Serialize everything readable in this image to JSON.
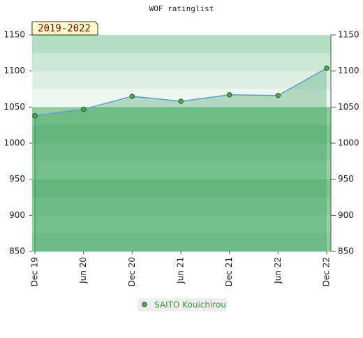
{
  "chart_data": {
    "type": "line",
    "title": "WOF ratinglist",
    "annotation": "2019-2022",
    "categories": [
      "Dec 19",
      "Jun 20",
      "Dec 20",
      "Jun 21",
      "Dec 21",
      "Jun 22",
      "Dec 22"
    ],
    "series": [
      {
        "name": "SAITO Kouichirou",
        "color": "#5b9bd5",
        "values": [
          1038,
          1047,
          1065,
          1058,
          1067,
          1066,
          1104
        ]
      }
    ],
    "ylim": [
      850,
      1150
    ],
    "yticks": [
      850,
      900,
      950,
      1000,
      1050,
      1100,
      1150
    ],
    "y2lim": [
      850,
      1150
    ],
    "y2ticks": [
      850,
      900,
      950,
      1000,
      1050,
      1100,
      1150
    ]
  }
}
